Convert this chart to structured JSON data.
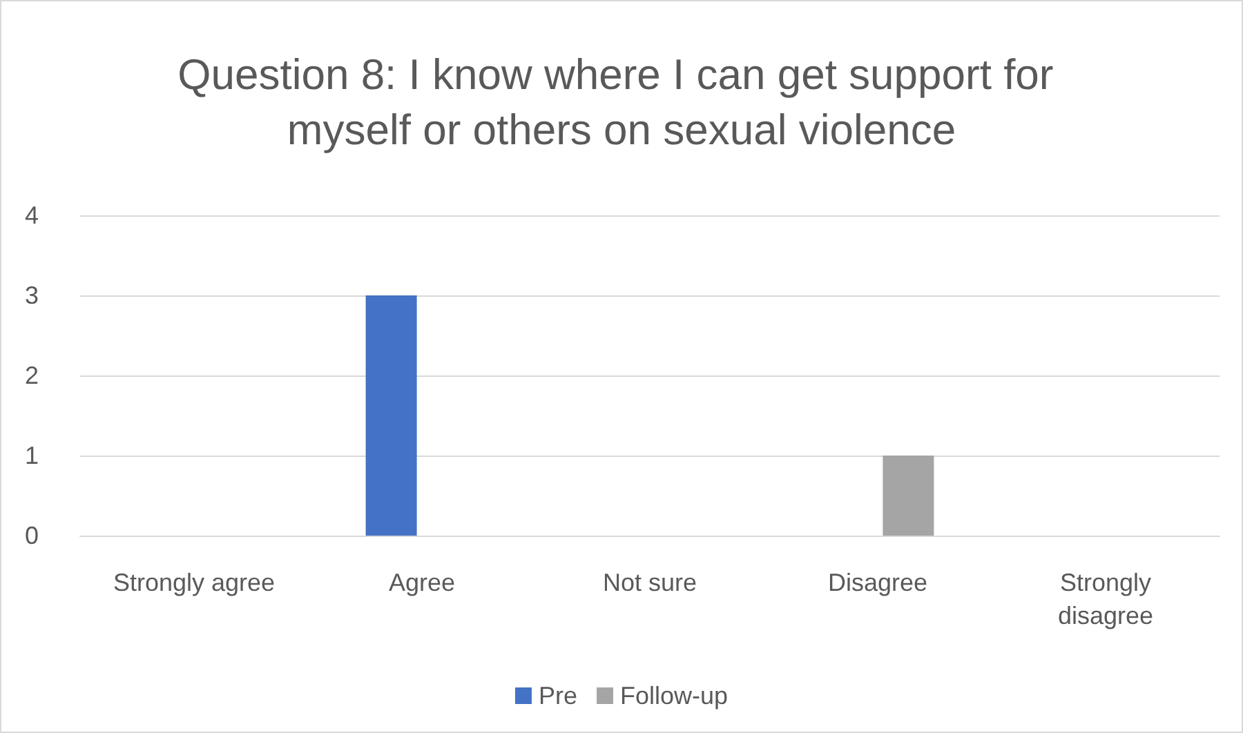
{
  "chart_data": {
    "type": "bar",
    "title": "Question 8: I know where I can get support for myself or others on sexual violence",
    "categories": [
      "Strongly agree",
      "Agree",
      "Not sure",
      "Disagree",
      "Strongly\ndisagree"
    ],
    "series": [
      {
        "name": "Pre",
        "color": "#4472c4",
        "values": [
          0,
          3,
          0,
          0,
          0
        ]
      },
      {
        "name": "Follow-up",
        "color": "#a5a5a5",
        "values": [
          0,
          0,
          0,
          1,
          0
        ]
      }
    ],
    "ylim": [
      0,
      4
    ],
    "yticks": [
      0,
      1,
      2,
      3,
      4
    ],
    "grid": "y",
    "legend": "bottom"
  }
}
